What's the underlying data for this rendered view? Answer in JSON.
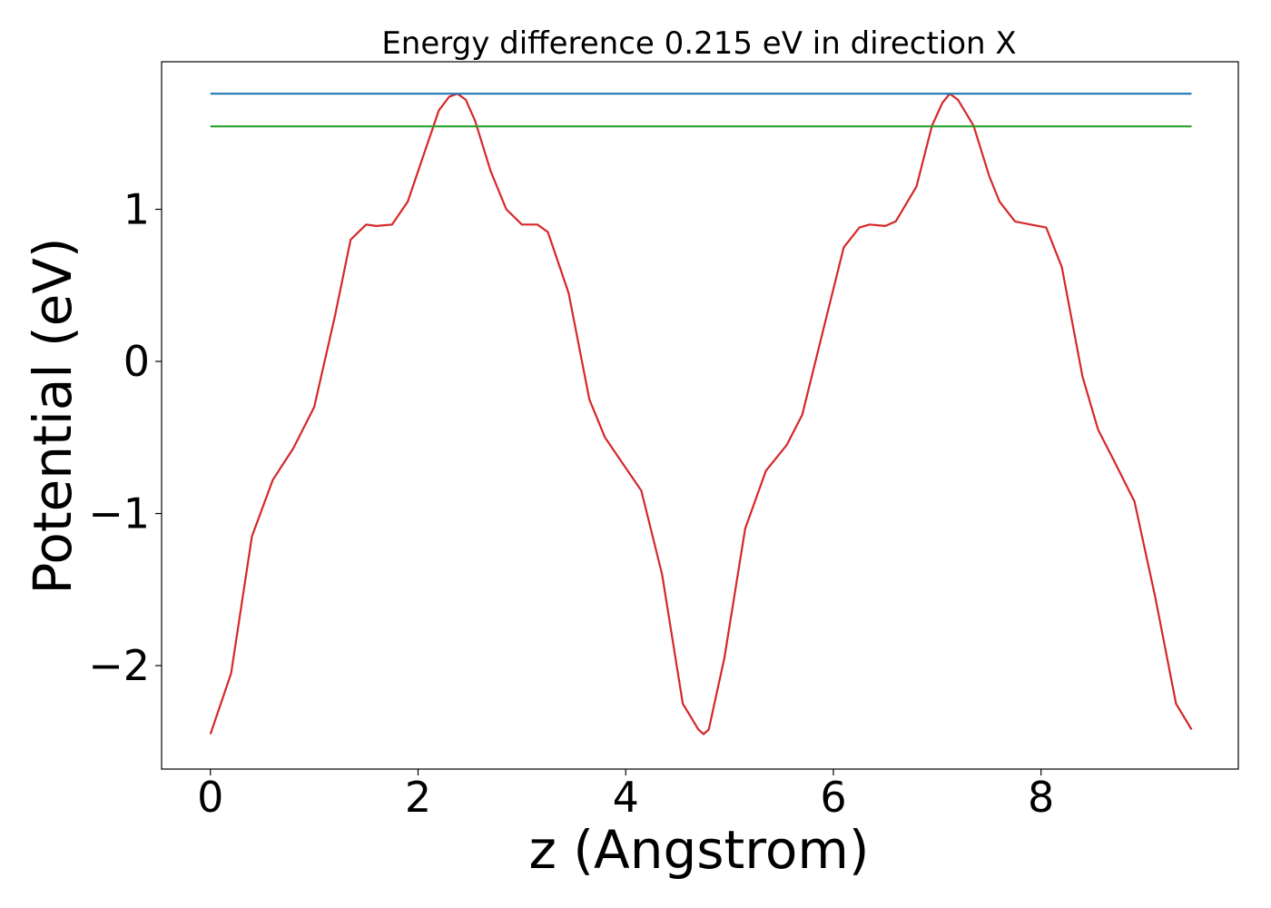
{
  "chart_data": {
    "type": "line",
    "title": "Energy difference 0.215 eV in direction X",
    "xlabel": "z (Angstrom)",
    "ylabel": "Potential (eV)",
    "xlim": [
      -0.47,
      9.9
    ],
    "ylim": [
      -2.68,
      1.97
    ],
    "x_ticks": [
      0,
      2,
      4,
      6,
      8
    ],
    "x_tick_labels": [
      "0",
      "2",
      "4",
      "6",
      "8"
    ],
    "y_ticks": [
      -2,
      -1,
      0,
      1
    ],
    "y_tick_labels": [
      "−2",
      "−1",
      "0",
      "1"
    ],
    "grid": false,
    "legend": "none",
    "series": [
      {
        "color": "#d62728",
        "x": [
          0.0,
          0.2,
          0.4,
          0.6,
          0.8,
          1.0,
          1.2,
          1.35,
          1.5,
          1.6,
          1.75,
          1.9,
          2.05,
          2.2,
          2.3,
          2.38,
          2.46,
          2.55,
          2.7,
          2.85,
          3.0,
          3.15,
          3.25,
          3.45,
          3.65,
          3.8,
          4.0,
          4.15,
          4.35,
          4.55,
          4.7,
          4.75,
          4.8,
          4.95,
          5.15,
          5.35,
          5.55,
          5.7,
          5.9,
          6.1,
          6.25,
          6.35,
          6.5,
          6.6,
          6.8,
          6.95,
          7.05,
          7.12,
          7.2,
          7.35,
          7.5,
          7.6,
          7.75,
          7.9,
          8.05,
          8.2,
          8.4,
          8.55,
          8.7,
          8.9,
          9.1,
          9.3,
          9.45
        ],
        "y": [
          -2.45,
          -2.05,
          -1.15,
          -0.78,
          -0.57,
          -0.3,
          0.3,
          0.8,
          0.9,
          0.89,
          0.9,
          1.05,
          1.35,
          1.65,
          1.74,
          1.76,
          1.72,
          1.58,
          1.25,
          1.0,
          0.9,
          0.9,
          0.85,
          0.45,
          -0.25,
          -0.5,
          -0.7,
          -0.85,
          -1.4,
          -2.25,
          -2.42,
          -2.45,
          -2.42,
          -1.95,
          -1.1,
          -0.72,
          -0.55,
          -0.35,
          0.2,
          0.75,
          0.88,
          0.9,
          0.89,
          0.92,
          1.15,
          1.55,
          1.7,
          1.76,
          1.72,
          1.55,
          1.22,
          1.05,
          0.92,
          0.9,
          0.88,
          0.62,
          -0.1,
          -0.45,
          -0.65,
          -0.92,
          -1.55,
          -2.25,
          -2.42
        ]
      },
      {
        "color": "#1f77b4",
        "x": [
          0.0,
          9.45
        ],
        "y": [
          1.76,
          1.76
        ]
      },
      {
        "color": "#2ca02c",
        "x": [
          0.0,
          9.45
        ],
        "y": [
          1.545,
          1.545
        ]
      }
    ]
  }
}
